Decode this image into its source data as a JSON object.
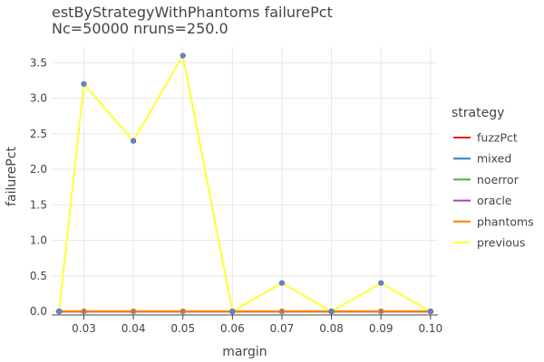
{
  "chart_data": {
    "type": "line",
    "title": "estByStrategyWithPhantoms failurePct",
    "subtitle": "Nc=50000 nruns=250.0",
    "xlabel": "margin",
    "ylabel": "failurePct",
    "x": [
      0.025,
      0.03,
      0.04,
      0.05,
      0.06,
      0.07,
      0.08,
      0.09,
      0.1
    ],
    "xticks": [
      "0.03",
      "0.04",
      "0.05",
      "0.06",
      "0.07",
      "0.08",
      "0.09",
      "0.10"
    ],
    "yticks": [
      "0.0",
      "0.5",
      "1.0",
      "1.5",
      "2.0",
      "2.5",
      "3.0",
      "3.5"
    ],
    "ylim": [
      -0.05,
      3.72
    ],
    "xlim": [
      0.0235,
      0.1015
    ],
    "grid": true,
    "legend_title": "strategy",
    "legend_position": "right",
    "series": [
      {
        "name": "fuzzPct",
        "color": "#e41a1c",
        "values": [
          0,
          0,
          0,
          0,
          0,
          0,
          0,
          0,
          0
        ]
      },
      {
        "name": "mixed",
        "color": "#377eb8",
        "values": [
          0,
          0,
          0,
          0,
          0,
          0,
          0,
          0,
          0
        ]
      },
      {
        "name": "noerror",
        "color": "#4daf4a",
        "values": [
          0,
          0,
          0,
          0,
          0,
          0,
          0,
          0,
          0
        ]
      },
      {
        "name": "oracle",
        "color": "#984ea3",
        "values": [
          0,
          0,
          0,
          0,
          0,
          0,
          0,
          0,
          0
        ]
      },
      {
        "name": "phantoms",
        "color": "#ff7f00",
        "values": [
          0,
          0,
          0,
          0,
          0,
          0,
          0,
          0,
          0
        ]
      },
      {
        "name": "previous",
        "color": "#ffff33",
        "values": [
          0,
          3.2,
          2.4,
          3.6,
          0,
          0.4,
          0,
          0.4,
          0
        ]
      }
    ]
  }
}
